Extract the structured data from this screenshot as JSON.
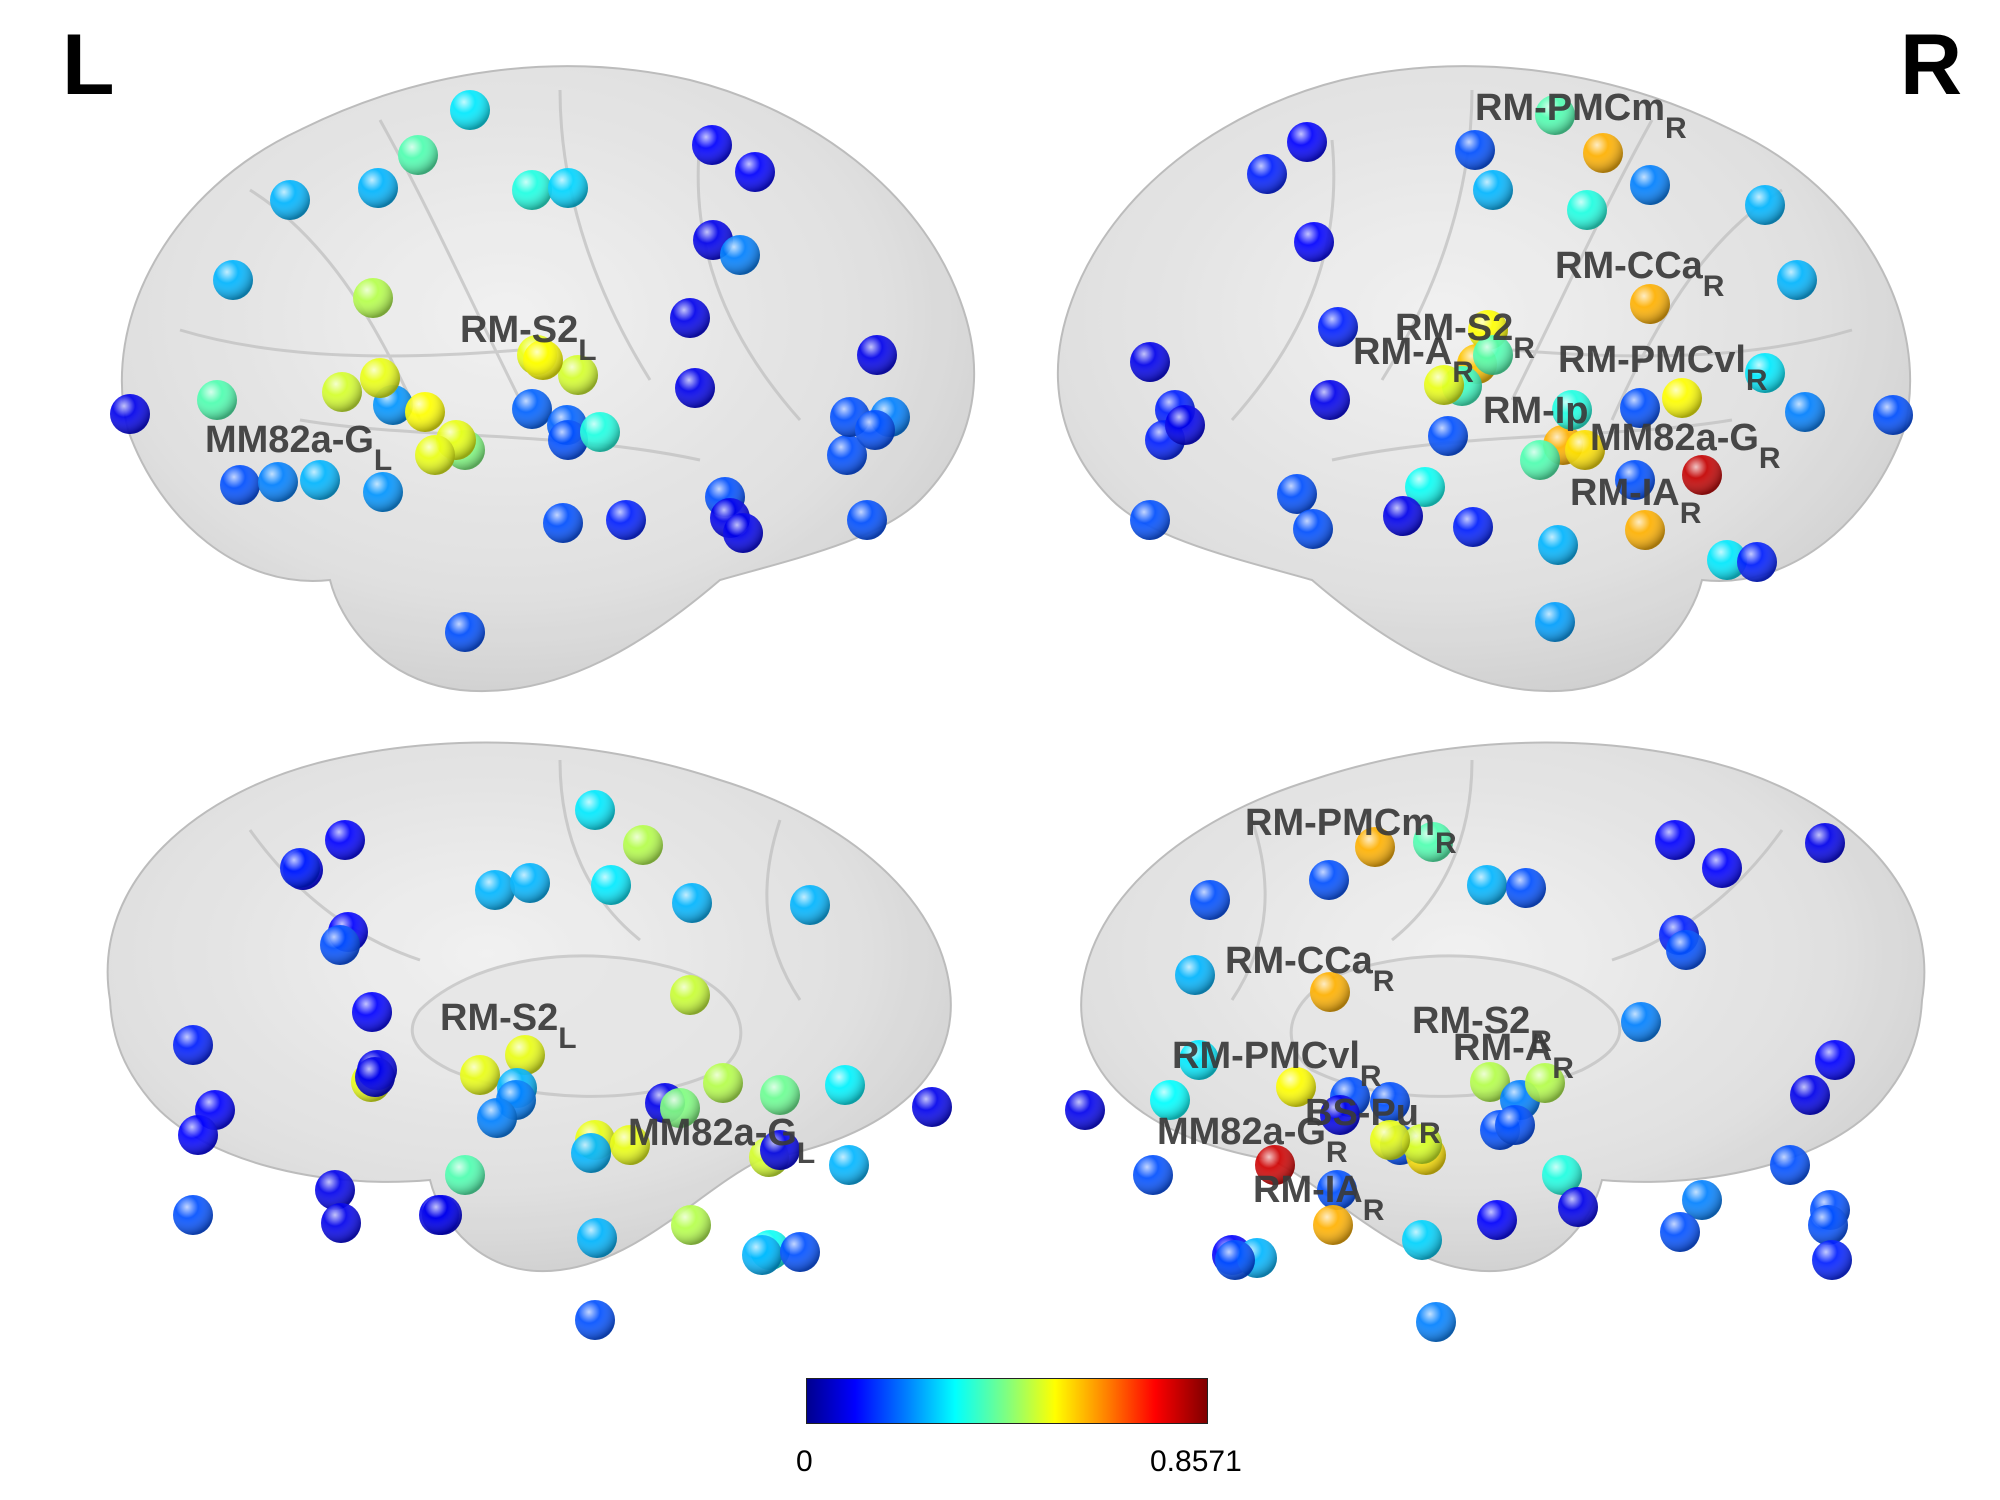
{
  "hemisphere_labels": {
    "left": "L",
    "right": "R"
  },
  "colorbar": {
    "min_label": "0",
    "max_label": "0.8571",
    "colormap": "jet"
  },
  "colors": {
    "brain_fill": "#d9d9d9",
    "brain_stroke": "#b5b5b5",
    "label_text": "#3a3a3a"
  },
  "views": [
    {
      "name": "left-lateral",
      "labels": [
        {
          "main": "RM-S2",
          "sub": "L"
        },
        {
          "main": "MM82a-G",
          "sub": "L"
        }
      ]
    },
    {
      "name": "right-lateral",
      "labels": [
        {
          "main": "RM-PMCm",
          "sub": "R"
        },
        {
          "main": "RM-CCa",
          "sub": "R"
        },
        {
          "main": "RM-S2",
          "sub": "R"
        },
        {
          "main": "RM-A",
          "sub": "R"
        },
        {
          "main": "RM-PMCvl",
          "sub": "R"
        },
        {
          "main": "RM-Ip",
          "sub": ""
        },
        {
          "main": "MM82a-G",
          "sub": "R"
        },
        {
          "main": "RM-IA",
          "sub": "R"
        }
      ]
    },
    {
      "name": "left-medial",
      "labels": [
        {
          "main": "RM-S2",
          "sub": "L"
        },
        {
          "main": "MM82a-G",
          "sub": "L"
        }
      ]
    },
    {
      "name": "right-medial",
      "labels": [
        {
          "main": "RM-PMCm",
          "sub": "R"
        },
        {
          "main": "RM-CCa",
          "sub": "R"
        },
        {
          "main": "RM-S2",
          "sub": "R"
        },
        {
          "main": "RM-A",
          "sub": "R"
        },
        {
          "main": "RM-PMCvl",
          "sub": "R"
        },
        {
          "main": "BS-Pu",
          "sub": "R"
        },
        {
          "main": "MM82a-G",
          "sub": "R"
        },
        {
          "main": "RM-IA",
          "sub": "R"
        }
      ]
    }
  ]
}
